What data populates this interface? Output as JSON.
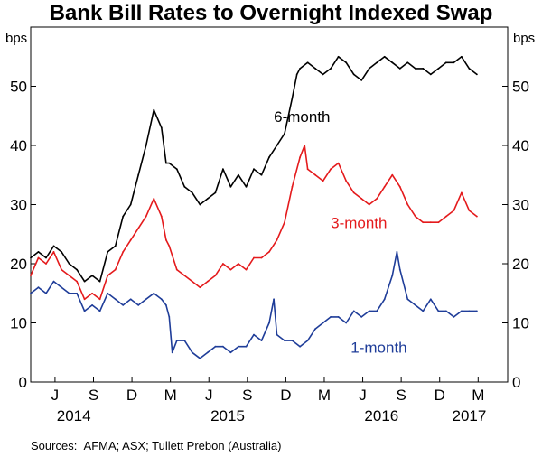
{
  "chart_data": {
    "type": "line",
    "title": "Bank Bill Rates to Overnight Indexed Swap",
    "unit_left": "bps",
    "unit_right": "bps",
    "ylim": [
      0,
      60
    ],
    "yticks": [
      "0",
      "10",
      "20",
      "30",
      "40",
      "50"
    ],
    "ytick_values": [
      0,
      10,
      20,
      30,
      40,
      50
    ],
    "month_ticks": [
      {
        "label": "J",
        "t": 2014.458
      },
      {
        "label": "S",
        "t": 2014.708
      },
      {
        "label": "D",
        "t": 2014.958
      },
      {
        "label": "M",
        "t": 2015.208
      },
      {
        "label": "J",
        "t": 2015.458
      },
      {
        "label": "S",
        "t": 2015.708
      },
      {
        "label": "D",
        "t": 2015.958
      },
      {
        "label": "M",
        "t": 2016.208
      },
      {
        "label": "J",
        "t": 2016.458
      },
      {
        "label": "S",
        "t": 2016.708
      },
      {
        "label": "D",
        "t": 2016.958
      },
      {
        "label": "M",
        "t": 2017.208
      }
    ],
    "year_labels": [
      {
        "label": "2014",
        "t": 2014.58
      },
      {
        "label": "2015",
        "t": 2015.58
      },
      {
        "label": "2016",
        "t": 2016.58
      },
      {
        "label": "2017",
        "t": 2017.15
      }
    ],
    "xlim": [
      2014.3,
      2017.4
    ],
    "series": [
      {
        "name": "6-month",
        "color": "#000000",
        "label_t": 2015.88,
        "label_v": 44,
        "points": [
          [
            2014.3,
            21
          ],
          [
            2014.35,
            22
          ],
          [
            2014.4,
            21
          ],
          [
            2014.45,
            23
          ],
          [
            2014.5,
            22
          ],
          [
            2014.55,
            20
          ],
          [
            2014.6,
            19
          ],
          [
            2014.65,
            17
          ],
          [
            2014.7,
            18
          ],
          [
            2014.75,
            17
          ],
          [
            2014.8,
            22
          ],
          [
            2014.85,
            23
          ],
          [
            2014.9,
            28
          ],
          [
            2014.95,
            30
          ],
          [
            2015.0,
            35
          ],
          [
            2015.05,
            40
          ],
          [
            2015.1,
            46
          ],
          [
            2015.15,
            43
          ],
          [
            2015.18,
            37
          ],
          [
            2015.2,
            37
          ],
          [
            2015.25,
            36
          ],
          [
            2015.3,
            33
          ],
          [
            2015.35,
            32
          ],
          [
            2015.4,
            30
          ],
          [
            2015.45,
            31
          ],
          [
            2015.5,
            32
          ],
          [
            2015.55,
            36
          ],
          [
            2015.6,
            33
          ],
          [
            2015.65,
            35
          ],
          [
            2015.7,
            33
          ],
          [
            2015.75,
            36
          ],
          [
            2015.8,
            35
          ],
          [
            2015.85,
            38
          ],
          [
            2015.9,
            40
          ],
          [
            2015.95,
            42
          ],
          [
            2016.0,
            48
          ],
          [
            2016.03,
            52
          ],
          [
            2016.05,
            53
          ],
          [
            2016.1,
            54
          ],
          [
            2016.15,
            53
          ],
          [
            2016.2,
            52
          ],
          [
            2016.25,
            53
          ],
          [
            2016.3,
            55
          ],
          [
            2016.35,
            54
          ],
          [
            2016.4,
            52
          ],
          [
            2016.45,
            51
          ],
          [
            2016.5,
            53
          ],
          [
            2016.55,
            54
          ],
          [
            2016.6,
            55
          ],
          [
            2016.65,
            54
          ],
          [
            2016.7,
            53
          ],
          [
            2016.75,
            54
          ],
          [
            2016.8,
            53
          ],
          [
            2016.85,
            53
          ],
          [
            2016.9,
            52
          ],
          [
            2016.95,
            53
          ],
          [
            2017.0,
            54
          ],
          [
            2017.05,
            54
          ],
          [
            2017.1,
            55
          ],
          [
            2017.15,
            53
          ],
          [
            2017.2,
            52
          ]
        ]
      },
      {
        "name": "3-month",
        "color": "#e41a1c",
        "label_t": 2016.25,
        "label_v": 26,
        "points": [
          [
            2014.3,
            18
          ],
          [
            2014.35,
            21
          ],
          [
            2014.4,
            20
          ],
          [
            2014.45,
            22
          ],
          [
            2014.5,
            19
          ],
          [
            2014.55,
            18
          ],
          [
            2014.6,
            17
          ],
          [
            2014.65,
            14
          ],
          [
            2014.7,
            15
          ],
          [
            2014.75,
            14
          ],
          [
            2014.8,
            18
          ],
          [
            2014.85,
            19
          ],
          [
            2014.9,
            22
          ],
          [
            2014.95,
            24
          ],
          [
            2015.0,
            26
          ],
          [
            2015.05,
            28
          ],
          [
            2015.1,
            31
          ],
          [
            2015.15,
            28
          ],
          [
            2015.18,
            24
          ],
          [
            2015.2,
            23
          ],
          [
            2015.25,
            19
          ],
          [
            2015.3,
            18
          ],
          [
            2015.35,
            17
          ],
          [
            2015.4,
            16
          ],
          [
            2015.45,
            17
          ],
          [
            2015.5,
            18
          ],
          [
            2015.55,
            20
          ],
          [
            2015.6,
            19
          ],
          [
            2015.65,
            20
          ],
          [
            2015.7,
            19
          ],
          [
            2015.75,
            21
          ],
          [
            2015.8,
            21
          ],
          [
            2015.85,
            22
          ],
          [
            2015.9,
            24
          ],
          [
            2015.95,
            27
          ],
          [
            2016.0,
            33
          ],
          [
            2016.05,
            38
          ],
          [
            2016.08,
            40
          ],
          [
            2016.1,
            36
          ],
          [
            2016.15,
            35
          ],
          [
            2016.2,
            34
          ],
          [
            2016.25,
            36
          ],
          [
            2016.3,
            37
          ],
          [
            2016.35,
            34
          ],
          [
            2016.4,
            32
          ],
          [
            2016.45,
            31
          ],
          [
            2016.5,
            30
          ],
          [
            2016.55,
            31
          ],
          [
            2016.6,
            33
          ],
          [
            2016.65,
            35
          ],
          [
            2016.7,
            33
          ],
          [
            2016.75,
            30
          ],
          [
            2016.8,
            28
          ],
          [
            2016.85,
            27
          ],
          [
            2016.9,
            27
          ],
          [
            2016.95,
            27
          ],
          [
            2017.0,
            28
          ],
          [
            2017.05,
            29
          ],
          [
            2017.1,
            32
          ],
          [
            2017.15,
            29
          ],
          [
            2017.2,
            28
          ]
        ]
      },
      {
        "name": "1-month",
        "color": "#1f3d99",
        "label_t": 2016.38,
        "label_v": 5,
        "points": [
          [
            2014.3,
            15
          ],
          [
            2014.35,
            16
          ],
          [
            2014.4,
            15
          ],
          [
            2014.45,
            17
          ],
          [
            2014.5,
            16
          ],
          [
            2014.55,
            15
          ],
          [
            2014.6,
            15
          ],
          [
            2014.65,
            12
          ],
          [
            2014.7,
            13
          ],
          [
            2014.75,
            12
          ],
          [
            2014.8,
            15
          ],
          [
            2014.85,
            14
          ],
          [
            2014.9,
            13
          ],
          [
            2014.95,
            14
          ],
          [
            2015.0,
            13
          ],
          [
            2015.05,
            14
          ],
          [
            2015.1,
            15
          ],
          [
            2015.15,
            14
          ],
          [
            2015.18,
            13
          ],
          [
            2015.2,
            11
          ],
          [
            2015.22,
            5
          ],
          [
            2015.25,
            7
          ],
          [
            2015.3,
            7
          ],
          [
            2015.35,
            5
          ],
          [
            2015.4,
            4
          ],
          [
            2015.45,
            5
          ],
          [
            2015.5,
            6
          ],
          [
            2015.55,
            6
          ],
          [
            2015.6,
            5
          ],
          [
            2015.65,
            6
          ],
          [
            2015.7,
            6
          ],
          [
            2015.75,
            8
          ],
          [
            2015.8,
            7
          ],
          [
            2015.85,
            10
          ],
          [
            2015.88,
            14
          ],
          [
            2015.9,
            8
          ],
          [
            2015.95,
            7
          ],
          [
            2016.0,
            7
          ],
          [
            2016.05,
            6
          ],
          [
            2016.1,
            7
          ],
          [
            2016.15,
            9
          ],
          [
            2016.2,
            10
          ],
          [
            2016.25,
            11
          ],
          [
            2016.3,
            11
          ],
          [
            2016.35,
            10
          ],
          [
            2016.4,
            12
          ],
          [
            2016.45,
            11
          ],
          [
            2016.5,
            12
          ],
          [
            2016.55,
            12
          ],
          [
            2016.6,
            14
          ],
          [
            2016.65,
            18
          ],
          [
            2016.68,
            22
          ],
          [
            2016.7,
            19
          ],
          [
            2016.75,
            14
          ],
          [
            2016.8,
            13
          ],
          [
            2016.85,
            12
          ],
          [
            2016.9,
            14
          ],
          [
            2016.95,
            12
          ],
          [
            2017.0,
            12
          ],
          [
            2017.05,
            11
          ],
          [
            2017.1,
            12
          ],
          [
            2017.15,
            12
          ],
          [
            2017.2,
            12
          ]
        ]
      }
    ],
    "source": "Sources:  AFMA; ASX; Tullett Prebon (Australia)"
  }
}
